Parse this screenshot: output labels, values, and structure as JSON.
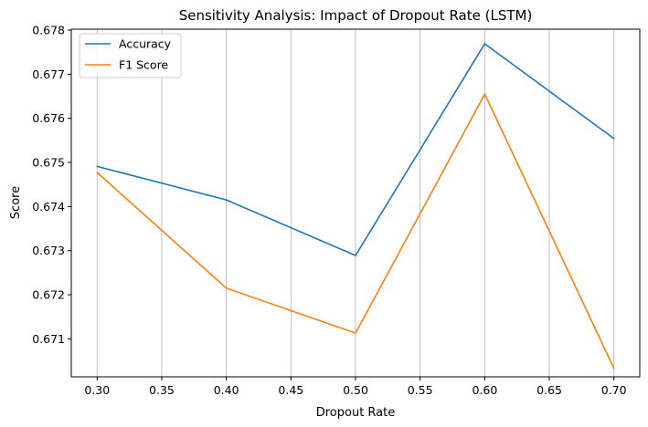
{
  "chart_data": {
    "type": "line",
    "title": "Sensitivity Analysis: Impact of Dropout Rate (LSTM)",
    "xlabel": "Dropout Rate",
    "ylabel": "Score",
    "x": [
      0.3,
      0.4,
      0.5,
      0.6,
      0.7
    ],
    "xlim": [
      0.28,
      0.72
    ],
    "ylim": [
      0.67014,
      0.67802
    ],
    "xticks": [
      0.3,
      0.35,
      0.4,
      0.45,
      0.5,
      0.55,
      0.6,
      0.65,
      0.7
    ],
    "xtick_labels": [
      "0.30",
      "0.35",
      "0.40",
      "0.45",
      "0.50",
      "0.55",
      "0.60",
      "0.65",
      "0.70"
    ],
    "yticks": [
      0.671,
      0.672,
      0.673,
      0.674,
      0.675,
      0.676,
      0.677,
      0.678
    ],
    "ytick_labels": [
      "0.671",
      "0.672",
      "0.673",
      "0.674",
      "0.675",
      "0.676",
      "0.677",
      "0.678"
    ],
    "grid": "vertical",
    "legend_position": "top-left",
    "series": [
      {
        "name": "Accuracy",
        "color": "#1f77b4",
        "values": [
          0.67491,
          0.67415,
          0.67289,
          0.67769,
          0.67554
        ]
      },
      {
        "name": "F1 Score",
        "color": "#ff7f0e",
        "values": [
          0.67477,
          0.67215,
          0.67113,
          0.67655,
          0.67033
        ]
      }
    ]
  }
}
